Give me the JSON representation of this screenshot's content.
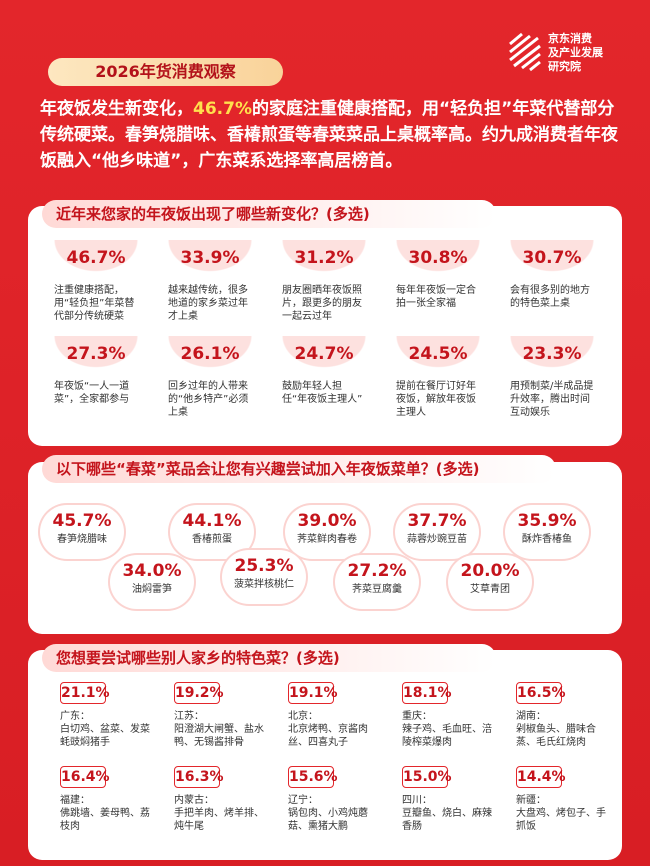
{
  "header": {
    "title": "2026年货消费观察",
    "logo_lines": [
      "京东消费",
      "及产业发展",
      "研究院"
    ]
  },
  "intro": {
    "before": "年夜饭发生新变化，",
    "highlight": "46.7%",
    "after": "的家庭注重健康搭配，用“轻负担”年菜代替部分传统硬菜。春笋烧腊味、香椿煎蛋等春菜菜品上桌概率高。约九成消费者年夜饭融入“他乡味道”，广东菜系选择率高居榜首。"
  },
  "changes": {
    "title": "近年来您家的年夜饭出现了哪些新变化？(多选)",
    "items": [
      {
        "pct": "46.7%",
        "text": "注重健康搭配，用“轻负担”年菜替代部分传统硬菜"
      },
      {
        "pct": "33.9%",
        "text": "越来越传统，很多地道的家乡菜过年才上桌"
      },
      {
        "pct": "31.2%",
        "text": "朋友圈晒年夜饭照片，跟更多的朋友一起云过年"
      },
      {
        "pct": "30.8%",
        "text": "每年年夜饭一定合拍一张全家福"
      },
      {
        "pct": "30.7%",
        "text": "会有很多别的地方的特色菜上桌"
      },
      {
        "pct": "27.3%",
        "text": "年夜饭“一人一道菜”，全家都参与"
      },
      {
        "pct": "26.1%",
        "text": "回乡过年的人带来的“他乡特产”必须上桌"
      },
      {
        "pct": "24.7%",
        "text": "鼓励年轻人担任“年夜饭主理人”"
      },
      {
        "pct": "24.5%",
        "text": "提前在餐厅订好年夜饭，解放年夜饭主理人"
      },
      {
        "pct": "23.3%",
        "text": "用预制菜/半成品提升效率，腾出时间互动娱乐"
      }
    ]
  },
  "spring": {
    "title": "以下哪些“春菜”菜品会让您有兴趣尝试加入年夜饭菜单？(多选)",
    "items": [
      {
        "pct": "45.7%",
        "text": "春笋烧腊味"
      },
      {
        "pct": "44.1%",
        "text": "香椿煎蛋"
      },
      {
        "pct": "39.0%",
        "text": "荠菜鲜肉春卷"
      },
      {
        "pct": "37.7%",
        "text": "蒜蓉炒豌豆苗"
      },
      {
        "pct": "35.9%",
        "text": "酥炸香椿鱼"
      },
      {
        "pct": "34.0%",
        "text": "油焖雷笋"
      },
      {
        "pct": "25.3%",
        "text": "菠菜拌核桃仁"
      },
      {
        "pct": "27.2%",
        "text": "荠菜豆腐羹"
      },
      {
        "pct": "20.0%",
        "text": "艾草青团"
      }
    ]
  },
  "hometown": {
    "title": "您想要尝试哪些别人家乡的特色菜？(多选)",
    "items": [
      {
        "pct": "21.1%",
        "region": "广东：",
        "dishes": "白切鸡、盆菜、发菜蚝豉焖猪手"
      },
      {
        "pct": "19.2%",
        "region": "江苏：",
        "dishes": "阳澄湖大闸蟹、盐水鸭、无锡酱排骨"
      },
      {
        "pct": "19.1%",
        "region": "北京：",
        "dishes": "北京烤鸭、京酱肉丝、四喜丸子"
      },
      {
        "pct": "18.1%",
        "region": "重庆：",
        "dishes": "辣子鸡、毛血旺、涪陵榨菜爆肉"
      },
      {
        "pct": "16.5%",
        "region": "湖南：",
        "dishes": "剁椒鱼头、腊味合蒸、毛氏红烧肉"
      },
      {
        "pct": "16.4%",
        "region": "福建：",
        "dishes": "佛跳墙、姜母鸭、荔枝肉"
      },
      {
        "pct": "16.3%",
        "region": "内蒙古：",
        "dishes": "手把羊肉、烤羊排、炖牛尾"
      },
      {
        "pct": "15.6%",
        "region": "辽宁：",
        "dishes": "锅包肉、小鸡炖蘑菇、熏猪大鹏"
      },
      {
        "pct": "15.0%",
        "region": "四川：",
        "dishes": "豆瓣鱼、烧白、麻辣香肠"
      },
      {
        "pct": "14.4%",
        "region": "新疆：",
        "dishes": "大盘鸡、烤包子、手抓饭"
      }
    ]
  }
}
